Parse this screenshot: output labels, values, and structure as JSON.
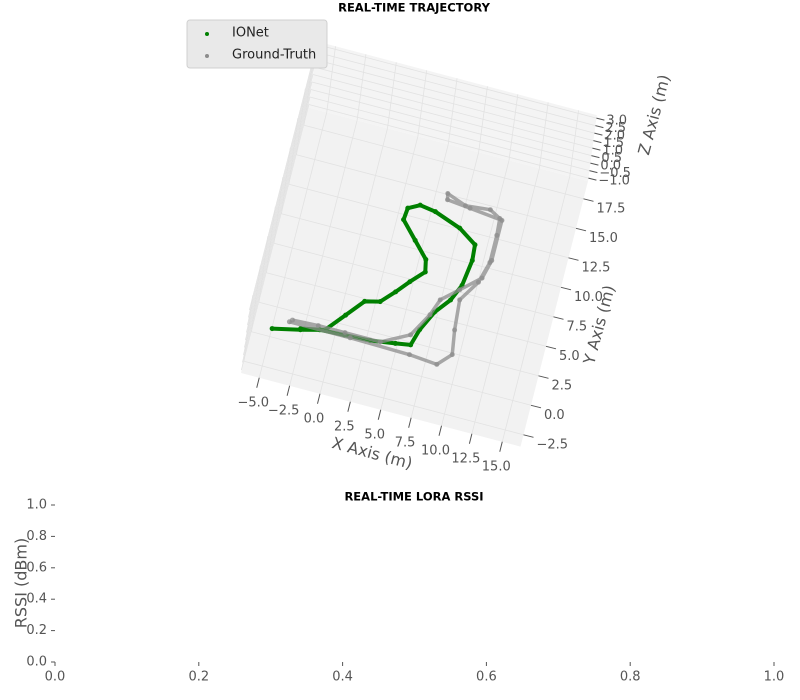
{
  "chart_data": [
    {
      "type": "scatter3d",
      "title": "REAL-TIME TRAJECTORY",
      "xlabel": "X Axis (m)",
      "ylabel": "Y Axis (m)",
      "zlabel": "Z Axis (m)",
      "legend": "upper left",
      "xlim": [
        -6.5,
        16.5
      ],
      "ylim": [
        -3.5,
        19
      ],
      "zlim": [
        -1.2,
        3.2
      ],
      "xticks": [
        {
          "value": -5,
          "label": "−5.0"
        },
        {
          "value": -2.5,
          "label": "−2.5"
        },
        {
          "value": 0,
          "label": "0.0"
        },
        {
          "value": 2.5,
          "label": "2.5"
        },
        {
          "value": 5,
          "label": "5.0"
        },
        {
          "value": 7.5,
          "label": "7.5"
        },
        {
          "value": 10,
          "label": "10.0"
        },
        {
          "value": 12.5,
          "label": "12.5"
        },
        {
          "value": 15,
          "label": "15.0"
        }
      ],
      "yticks": [
        {
          "value": -2.5,
          "label": "−2.5"
        },
        {
          "value": 0,
          "label": "0.0"
        },
        {
          "value": 2.5,
          "label": "2.5"
        },
        {
          "value": 5,
          "label": "5.0"
        },
        {
          "value": 7.5,
          "label": "7.5"
        },
        {
          "value": 10,
          "label": "10.0"
        },
        {
          "value": 12.5,
          "label": "12.5"
        },
        {
          "value": 15,
          "label": "15.0"
        },
        {
          "value": 17.5,
          "label": "17.5"
        }
      ],
      "zticks": [
        {
          "value": -1,
          "label": "−1.0"
        },
        {
          "value": -0.5,
          "label": "−0.5"
        },
        {
          "value": 0,
          "label": "0.0"
        },
        {
          "value": 0.5,
          "label": "0.5"
        },
        {
          "value": 1,
          "label": "1.0"
        },
        {
          "value": 1.5,
          "label": "1.5"
        },
        {
          "value": 2,
          "label": "2.0"
        },
        {
          "value": 2.5,
          "label": "2.5"
        },
        {
          "value": 3,
          "label": "3.0"
        }
      ],
      "series": [
        {
          "name": "IONet",
          "color": "#008000",
          "x": [
            -4.8,
            -2.6,
            -0.7,
            0.6,
            1.8,
            3.0,
            4.0,
            4.9,
            5.9,
            5.7,
            4.5,
            3.2,
            3.3,
            4.2,
            5.5,
            7.7,
            9.2,
            9.3,
            9.0,
            8.4,
            7.4,
            6.6,
            6.2,
            5.0,
            3.0,
            0.9,
            -1.1,
            -2.6
          ],
          "y": [
            -0.8,
            -0.3,
            0.2,
            1.8,
            3.3,
            3.6,
            4.7,
            5.8,
            6.9,
            7.9,
            9.2,
            10.6,
            11.6,
            12.1,
            11.9,
            11.1,
            10.1,
            8.8,
            6.6,
            5.2,
            3.9,
            2.2,
            0.8,
            0.6,
            0.3,
            0.2,
            0.1,
            -0.2
          ],
          "z": [
            0,
            0,
            0,
            0,
            0,
            0,
            0,
            0,
            0,
            0,
            0,
            0,
            0,
            0,
            0,
            0,
            0,
            0,
            0,
            0,
            0,
            0,
            0,
            0,
            0,
            0,
            0,
            0
          ]
        },
        {
          "name": "Ground-Truth",
          "color": "#8c8c8c",
          "x": [
            -3.6,
            1.4,
            6.3,
            8.6,
            9.6,
            9.3,
            9.1,
            10.2,
            10.7,
            10.7,
            10.6,
            9.7,
            7.7,
            6.1,
            6.2,
            8.1,
            10.8,
            10.8,
            10.4,
            8.9,
            7.6,
            7.1,
            6.0,
            3.8,
            0.9,
            -1.3,
            -3.4
          ],
          "y": [
            0.1,
            0.1,
            0.0,
            -0.2,
            0.9,
            2.9,
            5.4,
            7.2,
            9.0,
            11.3,
            12.7,
            13.2,
            13.0,
            13.6,
            13.1,
            12.9,
            12.6,
            9.2,
            7.6,
            6.2,
            5.0,
            3.6,
            1.6,
            0.4,
            0.4,
            0.4,
            0.3
          ],
          "z": [
            0,
            0,
            0,
            0,
            0,
            0,
            0,
            0,
            0,
            0,
            0,
            0,
            0,
            0,
            0,
            0,
            0,
            0,
            0,
            0,
            0,
            0,
            0,
            0,
            0,
            0,
            0
          ]
        }
      ]
    },
    {
      "type": "line",
      "title": "REAL-TIME LORA RSSI",
      "ylabel": "RSSI (dBm)",
      "xlim": [
        0,
        1
      ],
      "ylim": [
        0,
        1
      ],
      "xticks": [
        {
          "value": 0,
          "label": "0.0"
        },
        {
          "value": 0.2,
          "label": "0.2"
        },
        {
          "value": 0.4,
          "label": "0.4"
        },
        {
          "value": 0.6,
          "label": "0.6"
        },
        {
          "value": 0.8,
          "label": "0.8"
        },
        {
          "value": 1,
          "label": "1.0"
        }
      ],
      "yticks": [
        {
          "value": 0,
          "label": "0.0"
        },
        {
          "value": 0.2,
          "label": "0.2"
        },
        {
          "value": 0.4,
          "label": "0.4"
        },
        {
          "value": 0.6,
          "label": "0.6"
        },
        {
          "value": 0.8,
          "label": "0.8"
        },
        {
          "value": 1,
          "label": "1.0"
        }
      ]
    }
  ]
}
